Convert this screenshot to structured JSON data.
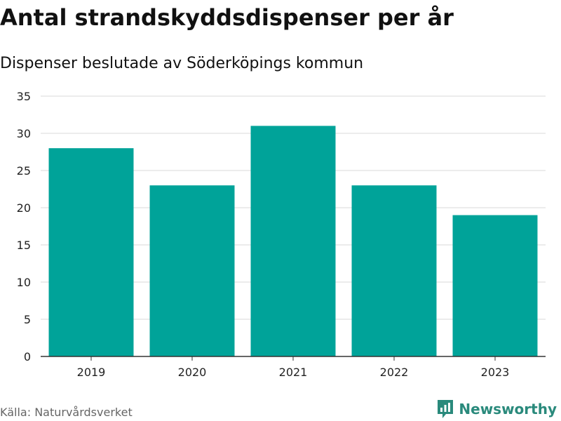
{
  "title": "Antal strandskyddsdispenser per år",
  "subtitle": "Dispenser beslutade av Söderköpings kommun",
  "source": "Källa: Naturvårdsverket",
  "brand": {
    "name": "Newsworthy",
    "color": "#2a8a7c",
    "icon": "bar-chart-speech-icon"
  },
  "colors": {
    "bar": "#00a399",
    "grid": "#d9d9d9",
    "axis": "#333333"
  },
  "chart_data": {
    "type": "bar",
    "title": "Antal strandskyddsdispenser per år",
    "subtitle": "Dispenser beslutade av Söderköpings kommun",
    "categories": [
      "2019",
      "2020",
      "2021",
      "2022",
      "2023"
    ],
    "values": [
      28,
      23,
      31,
      23,
      19
    ],
    "xlabel": "",
    "ylabel": "",
    "ylim": [
      0,
      35
    ],
    "yticks": [
      0,
      5,
      10,
      15,
      20,
      25,
      30,
      35
    ],
    "grid": true,
    "legend": "none"
  }
}
